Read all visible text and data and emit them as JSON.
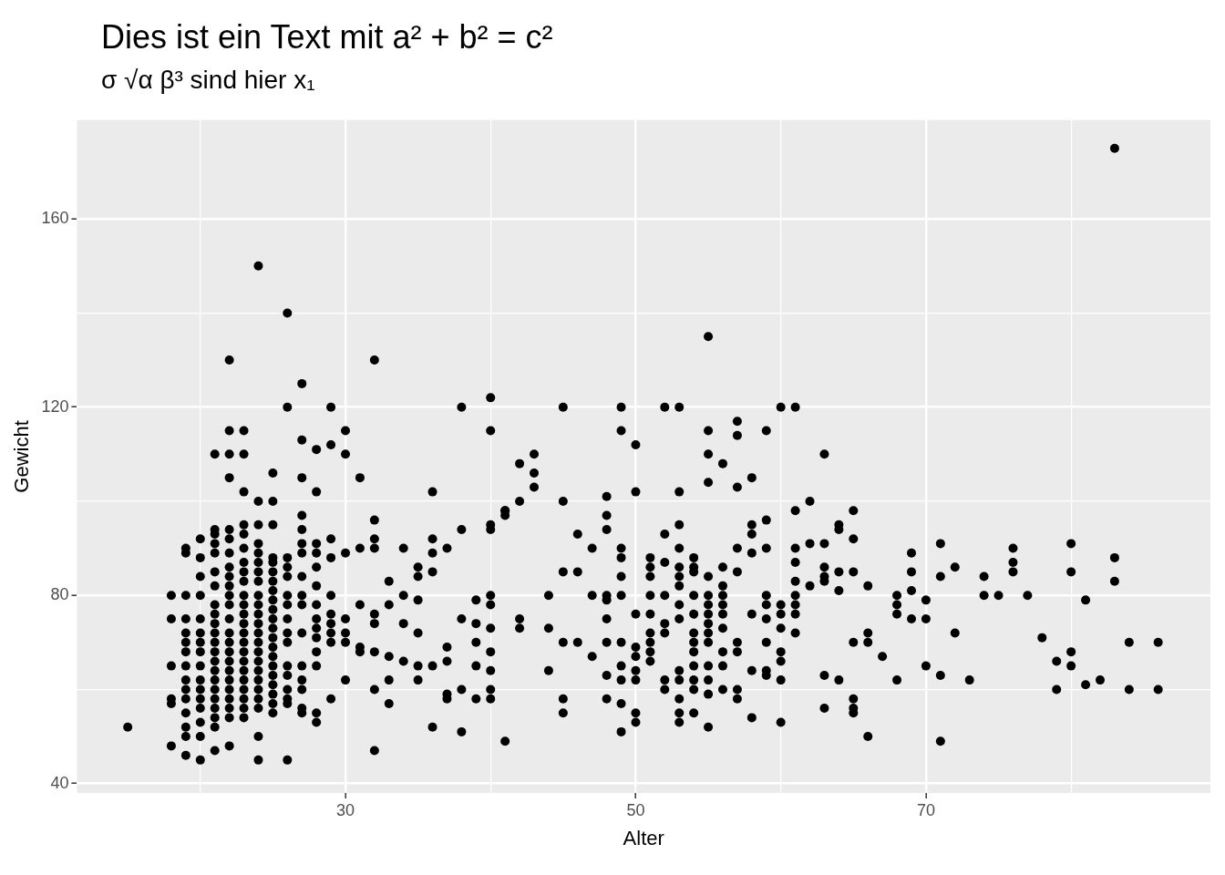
{
  "chart_data": {
    "type": "scatter",
    "title": "Dies ist ein Text mit a² + b² = c²",
    "subtitle": "σ √α β³ sind hier x₁",
    "xlabel": "Alter",
    "ylabel": "Gewicht",
    "xlim": [
      11.5,
      89.6
    ],
    "ylim": [
      38,
      181
    ],
    "xticks": [
      {
        "value": 20,
        "label": null
      },
      30,
      {
        "value": 40,
        "label": null
      },
      50,
      {
        "value": 60,
        "label": null
      },
      70,
      {
        "value": 80,
        "label": null
      }
    ],
    "yticks": [
      40,
      {
        "value": 60,
        "label": null
      },
      80,
      {
        "value": 100,
        "label": null
      },
      120,
      {
        "value": 140,
        "label": null
      },
      160
    ],
    "grid": true,
    "marker": "circle",
    "series": [
      {
        "color": "#000000",
        "x": [
          24,
          26,
          22,
          32,
          27,
          55,
          83,
          26,
          29,
          38,
          40,
          45,
          49,
          52,
          53,
          60,
          61,
          22,
          23,
          21,
          22,
          23,
          27,
          28,
          29,
          30,
          30,
          31,
          22,
          23,
          24,
          25,
          25,
          27,
          28,
          40,
          43,
          43,
          42,
          43,
          49,
          50,
          55,
          55,
          56,
          55,
          57,
          57,
          57,
          58,
          59,
          50,
          53,
          42,
          41,
          45,
          48,
          36,
          61,
          62,
          63,
          15,
          18,
          18,
          18,
          18,
          18,
          18,
          19,
          19,
          19,
          19,
          19,
          19,
          19,
          19,
          19,
          19,
          19,
          19,
          19,
          19,
          19,
          20,
          20,
          20,
          20,
          20,
          20,
          20,
          20,
          20,
          20,
          20,
          20,
          20,
          20,
          20,
          20,
          21,
          21,
          21,
          21,
          21,
          21,
          21,
          21,
          21,
          21,
          21,
          21,
          21,
          21,
          21,
          21,
          21,
          21,
          21,
          21,
          21,
          22,
          22,
          22,
          22,
          22,
          22,
          22,
          22,
          22,
          22,
          22,
          22,
          22,
          22,
          22,
          22,
          22,
          22,
          22,
          22,
          23,
          23,
          23,
          23,
          23,
          23,
          23,
          23,
          23,
          23,
          23,
          23,
          23,
          23,
          23,
          23,
          23,
          23,
          23,
          23,
          24,
          24,
          24,
          24,
          24,
          24,
          24,
          24,
          24,
          24,
          24,
          24,
          24,
          24,
          24,
          24,
          24,
          24,
          24,
          24,
          24,
          25,
          25,
          25,
          25,
          25,
          25,
          25,
          25,
          25,
          25,
          25,
          25,
          25,
          25,
          25,
          25,
          25,
          25,
          25,
          26,
          26,
          26,
          26,
          26,
          26,
          26,
          26,
          26,
          26,
          26,
          26,
          26,
          26,
          27,
          27,
          27,
          27,
          27,
          27,
          27,
          27,
          27,
          27,
          27,
          27,
          27,
          28,
          28,
          28,
          28,
          28,
          28,
          28,
          28,
          28,
          28,
          28,
          28,
          29,
          29,
          29,
          29,
          29,
          29,
          29,
          29,
          30,
          30,
          30,
          30,
          30,
          31,
          31,
          31,
          31,
          32,
          32,
          32,
          32,
          32,
          32,
          32,
          32,
          33,
          33,
          33,
          33,
          33,
          34,
          34,
          34,
          34,
          35,
          35,
          35,
          35,
          35,
          35,
          36,
          36,
          36,
          36,
          36,
          37,
          37,
          37,
          37,
          37,
          38,
          38,
          38,
          38,
          39,
          39,
          39,
          39,
          39,
          40,
          40,
          40,
          40,
          40,
          40,
          40,
          40,
          40,
          41,
          41,
          41,
          42,
          42,
          44,
          44,
          44,
          45,
          45,
          45,
          45,
          46,
          46,
          46,
          47,
          47,
          47,
          48,
          48,
          48,
          48,
          48,
          48,
          48,
          48,
          49,
          49,
          49,
          49,
          49,
          49,
          49,
          49,
          49,
          50,
          50,
          50,
          50,
          50,
          50,
          50,
          51,
          51,
          51,
          51,
          51,
          51,
          51,
          51,
          51,
          52,
          52,
          52,
          52,
          52,
          52,
          52,
          53,
          53,
          53,
          53,
          53,
          53,
          53,
          53,
          53,
          53,
          53,
          53,
          54,
          54,
          54,
          54,
          54,
          54,
          54,
          54,
          54,
          54,
          54,
          54,
          55,
          55,
          55,
          55,
          55,
          55,
          55,
          55,
          55,
          55,
          55,
          56,
          56,
          56,
          56,
          56,
          56,
          56,
          56,
          56,
          57,
          57,
          57,
          57,
          57,
          57,
          58,
          58,
          58,
          58,
          58,
          58,
          59,
          59,
          59,
          59,
          59,
          59,
          59,
          59,
          60,
          60,
          60,
          60,
          60,
          60,
          60,
          61,
          61,
          61,
          61,
          61,
          61,
          61,
          62,
          62,
          63,
          63,
          63,
          63,
          63,
          63,
          64,
          64,
          64,
          64,
          64,
          65,
          65,
          65,
          65,
          65,
          65,
          65,
          66,
          66,
          66,
          66,
          67,
          68,
          68,
          68,
          68,
          69,
          69,
          69,
          69,
          70,
          70,
          70,
          71,
          71,
          71,
          71,
          72,
          72,
          73,
          74,
          74,
          75,
          76,
          76,
          76,
          77,
          78,
          79,
          79,
          80,
          80,
          80,
          80,
          81,
          81,
          82,
          83,
          83,
          84,
          84,
          86,
          86
        ],
        "values": [
          150,
          140,
          130,
          130,
          125,
          135,
          175,
          120,
          120,
          120,
          122,
          120,
          120,
          120,
          120,
          120,
          120,
          115,
          115,
          110,
          110,
          110,
          113,
          111,
          112,
          115,
          110,
          105,
          105,
          102,
          100,
          106,
          100,
          105,
          102,
          115,
          110,
          106,
          108,
          103,
          115,
          112,
          115,
          110,
          108,
          104,
          117,
          114,
          103,
          105,
          115,
          102,
          102,
          100,
          98,
          100,
          101,
          102,
          98,
          100,
          110,
          52,
          80,
          75,
          65,
          58,
          57,
          48,
          90,
          89,
          80,
          75,
          72,
          70,
          68,
          65,
          62,
          60,
          58,
          55,
          52,
          50,
          46,
          92,
          88,
          84,
          80,
          75,
          72,
          70,
          68,
          65,
          62,
          60,
          58,
          56,
          53,
          50,
          45,
          94,
          93,
          91,
          89,
          85,
          82,
          78,
          76,
          74,
          72,
          70,
          68,
          66,
          64,
          62,
          60,
          58,
          56,
          54,
          52,
          47,
          94,
          92,
          89,
          86,
          84,
          82,
          80,
          78,
          75,
          72,
          70,
          68,
          66,
          64,
          62,
          60,
          58,
          56,
          54,
          48,
          95,
          93,
          90,
          87,
          85,
          83,
          80,
          78,
          76,
          74,
          72,
          70,
          68,
          66,
          64,
          62,
          60,
          58,
          56,
          54,
          95,
          91,
          89,
          87,
          85,
          83,
          80,
          78,
          76,
          74,
          72,
          70,
          68,
          66,
          64,
          62,
          60,
          58,
          56,
          50,
          45,
          95,
          88,
          87,
          85,
          83,
          81,
          79,
          77,
          75,
          73,
          71,
          69,
          67,
          65,
          63,
          61,
          59,
          57,
          55,
          88,
          86,
          84,
          80,
          78,
          75,
          72,
          70,
          65,
          63,
          60,
          58,
          57,
          45,
          97,
          94,
          91,
          89,
          84,
          80,
          78,
          72,
          65,
          62,
          60,
          56,
          55,
          91,
          89,
          86,
          82,
          78,
          75,
          73,
          71,
          68,
          65,
          55,
          53,
          92,
          88,
          80,
          76,
          74,
          72,
          70,
          58,
          89,
          75,
          72,
          70,
          62,
          90,
          78,
          69,
          68,
          96,
          92,
          90,
          76,
          74,
          68,
          60,
          47,
          83,
          78,
          67,
          62,
          57,
          90,
          80,
          74,
          66,
          86,
          84,
          79,
          72,
          65,
          62,
          92,
          89,
          85,
          65,
          52,
          90,
          69,
          66,
          59,
          58,
          94,
          75,
          60,
          51,
          79,
          74,
          70,
          65,
          58,
          95,
          94,
          80,
          78,
          73,
          68,
          64,
          60,
          58,
          98,
          97,
          49,
          75,
          73,
          80,
          73,
          64,
          85,
          70,
          58,
          55,
          93,
          85,
          70,
          90,
          80,
          67,
          97,
          94,
          80,
          79,
          75,
          70,
          63,
          58,
          90,
          88,
          84,
          80,
          70,
          65,
          62,
          57,
          51,
          76,
          69,
          67,
          64,
          62,
          55,
          53,
          88,
          86,
          84,
          80,
          76,
          72,
          70,
          68,
          66,
          93,
          87,
          80,
          74,
          72,
          62,
          60,
          95,
          90,
          86,
          84,
          82,
          78,
          75,
          64,
          62,
          58,
          55,
          53,
          88,
          86,
          85,
          80,
          76,
          72,
          70,
          68,
          65,
          62,
          60,
          55,
          84,
          80,
          78,
          76,
          74,
          72,
          70,
          65,
          62,
          59,
          52,
          86,
          82,
          80,
          78,
          76,
          73,
          68,
          65,
          60,
          90,
          85,
          70,
          68,
          60,
          58,
          95,
          93,
          89,
          76,
          64,
          54,
          96,
          90,
          80,
          78,
          75,
          70,
          64,
          63,
          78,
          76,
          73,
          68,
          66,
          62,
          53,
          90,
          87,
          83,
          80,
          78,
          76,
          72,
          91,
          82,
          91,
          86,
          84,
          83,
          63,
          56,
          95,
          94,
          85,
          81,
          62,
          98,
          92,
          85,
          70,
          58,
          56,
          55,
          82,
          72,
          70,
          50,
          67,
          80,
          78,
          76,
          62,
          89,
          85,
          81,
          75,
          79,
          75,
          65,
          91,
          84,
          63,
          49,
          86,
          72,
          62,
          84,
          80,
          80,
          90,
          87,
          85,
          80,
          71,
          66,
          60,
          91,
          85,
          68,
          65,
          79,
          61,
          62,
          88,
          83,
          70,
          60,
          70,
          60
        ]
      }
    ]
  }
}
